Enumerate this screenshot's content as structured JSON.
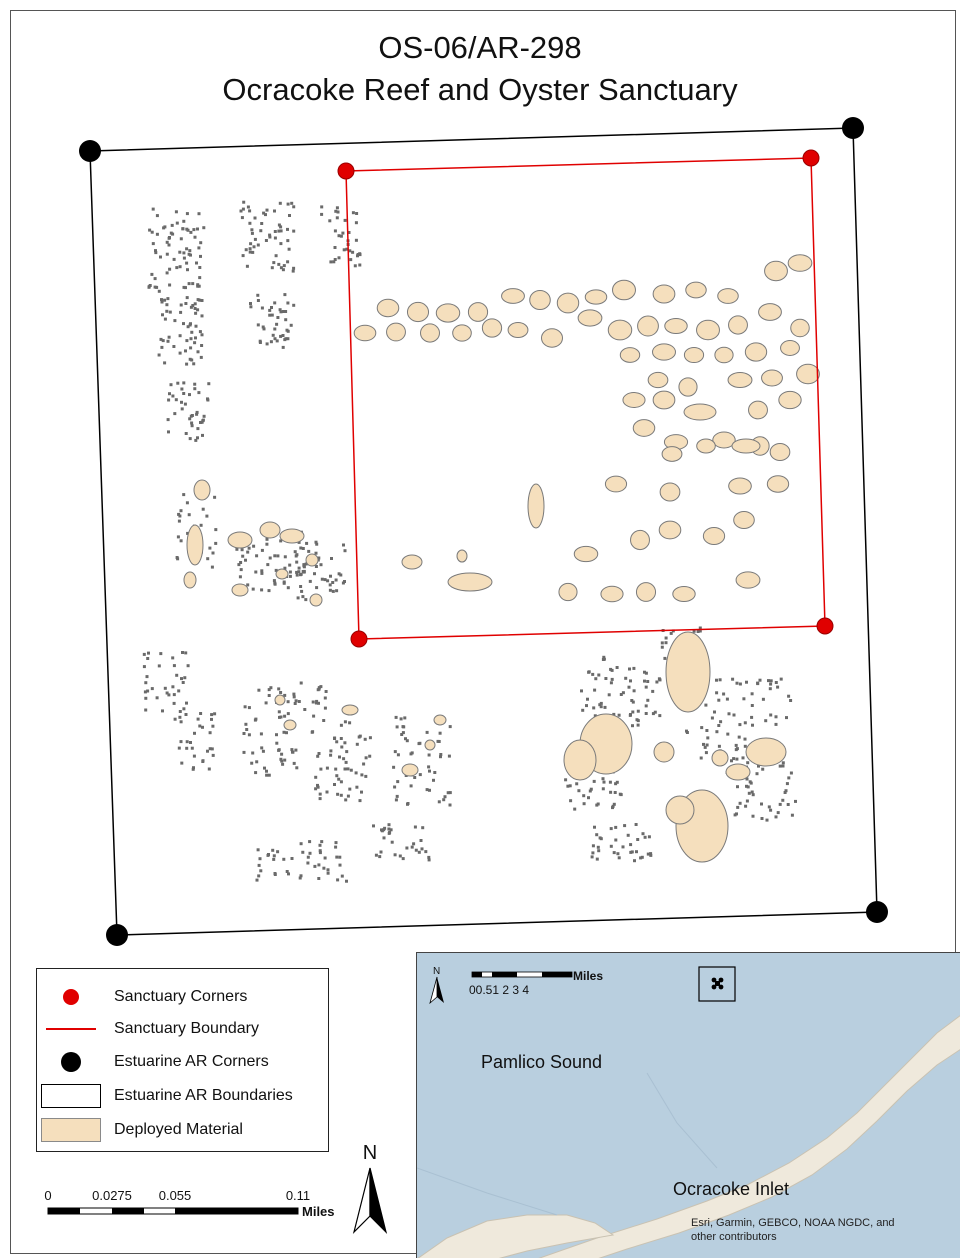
{
  "title": {
    "line1": "OS-06/AR-298",
    "line2": "Ocracoke Reef and Oyster Sanctuary"
  },
  "colors": {
    "sanctuary": "#e00000",
    "estuarine_corner": "#000000",
    "deployed_fill": "#f5dfbd",
    "deployed_outline": "#8a8a8a",
    "scattered_material": "#6a6a6a",
    "water": "#b9cfdf",
    "land": "#efe9dc"
  },
  "legend": {
    "items": [
      {
        "label": "Sanctuary Corners",
        "symbol": "red-dot"
      },
      {
        "label": "Sanctuary Boundary",
        "symbol": "red-line"
      },
      {
        "label": "Estuarine AR Corners",
        "symbol": "black-dot"
      },
      {
        "label": "Estuarine AR Boundaries",
        "symbol": "white-box"
      },
      {
        "label": "Deployed Material",
        "symbol": "tan-box"
      }
    ]
  },
  "scalebar": {
    "ticks": [
      "0",
      "0.0275",
      "0.055",
      "0.11"
    ],
    "unit": "Miles"
  },
  "north": {
    "label": "N"
  },
  "inset": {
    "north_label": "N",
    "scale_ticks": "00.51   2    3    4",
    "scale_unit": "Miles",
    "places": [
      "Pamlico Sound",
      "Ocracoke Inlet"
    ],
    "attribution_line1": "Esri, Garmin, GEBCO, NOAA NGDC, and",
    "attribution_line2": "other contributors"
  }
}
